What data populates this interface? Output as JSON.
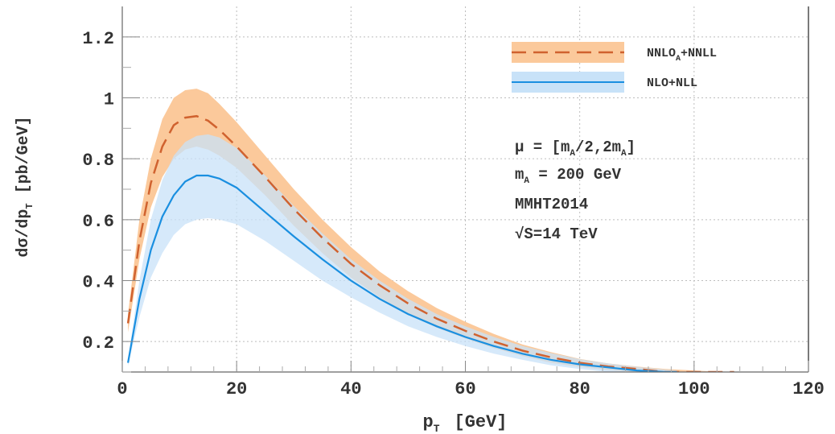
{
  "chart_data": {
    "type": "area",
    "xlabel": "p",
    "xlabel_sub": "T",
    "xlabel_unit": "[GeV]",
    "ylabel": "dσ/dp",
    "ylabel_sub": "T",
    "ylabel_unit": "[pb/GeV]",
    "xlim": [
      0,
      120
    ],
    "ylim": [
      0.1,
      1.3
    ],
    "x_ticks": [
      0,
      20,
      40,
      60,
      80,
      100,
      120
    ],
    "y_ticks": [
      0.2,
      0.4,
      0.6,
      0.8,
      1
    ],
    "y_tick_labels": [
      "0.2",
      "0.4",
      "0.6",
      "0.8",
      "1"
    ],
    "y_ticks_extra": [
      1.2
    ],
    "y_tick_labels_extra": [
      "1.2"
    ],
    "grid": true,
    "legend_position": "top-right",
    "series": [
      {
        "name": "NNLO",
        "name_sub": "A",
        "name_suffix": "+NNLL",
        "style": "dashed-line-with-band",
        "line_color": "#d0622f",
        "band_color": "#fbc99b",
        "x": [
          1,
          3,
          5,
          7,
          9,
          11,
          13,
          15,
          17,
          20,
          25,
          30,
          35,
          40,
          45,
          50,
          55,
          60,
          65,
          70,
          75,
          80,
          85,
          90,
          95,
          100,
          105,
          107
        ],
        "central": [
          0.26,
          0.53,
          0.72,
          0.84,
          0.91,
          0.935,
          0.94,
          0.925,
          0.895,
          0.84,
          0.74,
          0.635,
          0.54,
          0.455,
          0.385,
          0.325,
          0.275,
          0.235,
          0.2,
          0.17,
          0.148,
          0.13,
          0.118,
          0.11,
          0.1,
          0.1,
          0.1,
          0.1
        ],
        "upper": [
          0.29,
          0.6,
          0.8,
          0.93,
          1.0,
          1.025,
          1.03,
          1.015,
          0.98,
          0.92,
          0.81,
          0.7,
          0.6,
          0.51,
          0.43,
          0.365,
          0.31,
          0.265,
          0.225,
          0.19,
          0.165,
          0.143,
          0.128,
          0.118,
          0.11,
          0.105,
          0.1,
          0.1
        ],
        "lower": [
          0.23,
          0.47,
          0.64,
          0.74,
          0.8,
          0.83,
          0.84,
          0.83,
          0.81,
          0.77,
          0.68,
          0.58,
          0.49,
          0.41,
          0.345,
          0.29,
          0.245,
          0.21,
          0.178,
          0.152,
          0.13,
          0.116,
          0.106,
          0.1,
          0.1,
          0.1,
          0.1,
          0.1
        ]
      },
      {
        "name": "NLO+NLL",
        "style": "solid-line-with-band",
        "line_color": "#1a8fe0",
        "band_color": "#c8e2f8",
        "x": [
          1,
          3,
          5,
          7,
          9,
          11,
          13,
          15,
          17,
          20,
          25,
          30,
          35,
          40,
          45,
          50,
          55,
          60,
          65,
          70,
          75,
          80,
          85,
          90,
          95,
          97
        ],
        "central": [
          0.13,
          0.34,
          0.5,
          0.61,
          0.68,
          0.725,
          0.745,
          0.745,
          0.735,
          0.705,
          0.625,
          0.545,
          0.47,
          0.4,
          0.34,
          0.29,
          0.25,
          0.215,
          0.185,
          0.16,
          0.14,
          0.125,
          0.115,
          0.105,
          0.1,
          0.1
        ],
        "upper": [
          0.14,
          0.4,
          0.6,
          0.73,
          0.81,
          0.855,
          0.875,
          0.88,
          0.87,
          0.835,
          0.745,
          0.645,
          0.555,
          0.47,
          0.4,
          0.34,
          0.29,
          0.25,
          0.215,
          0.185,
          0.162,
          0.142,
          0.128,
          0.117,
          0.108,
          0.105
        ],
        "lower": [
          0.12,
          0.28,
          0.41,
          0.49,
          0.55,
          0.585,
          0.6,
          0.605,
          0.6,
          0.585,
          0.53,
          0.465,
          0.4,
          0.345,
          0.295,
          0.25,
          0.215,
          0.185,
          0.16,
          0.14,
          0.122,
          0.11,
          0.1,
          0.1,
          0.1,
          0.1
        ]
      }
    ],
    "annotations": {
      "mu_line": {
        "pre": "μ = [m",
        "sub1": "A",
        "mid": "/2,2m",
        "sub2": "A",
        "post": "]"
      },
      "mass_line": {
        "pre": "m",
        "sub": "A",
        "post": " = 200 GeV"
      },
      "pdf_line": "MMHT2014",
      "energy_line": {
        "sqrt": "√",
        "post": "S=14 TeV"
      }
    }
  }
}
